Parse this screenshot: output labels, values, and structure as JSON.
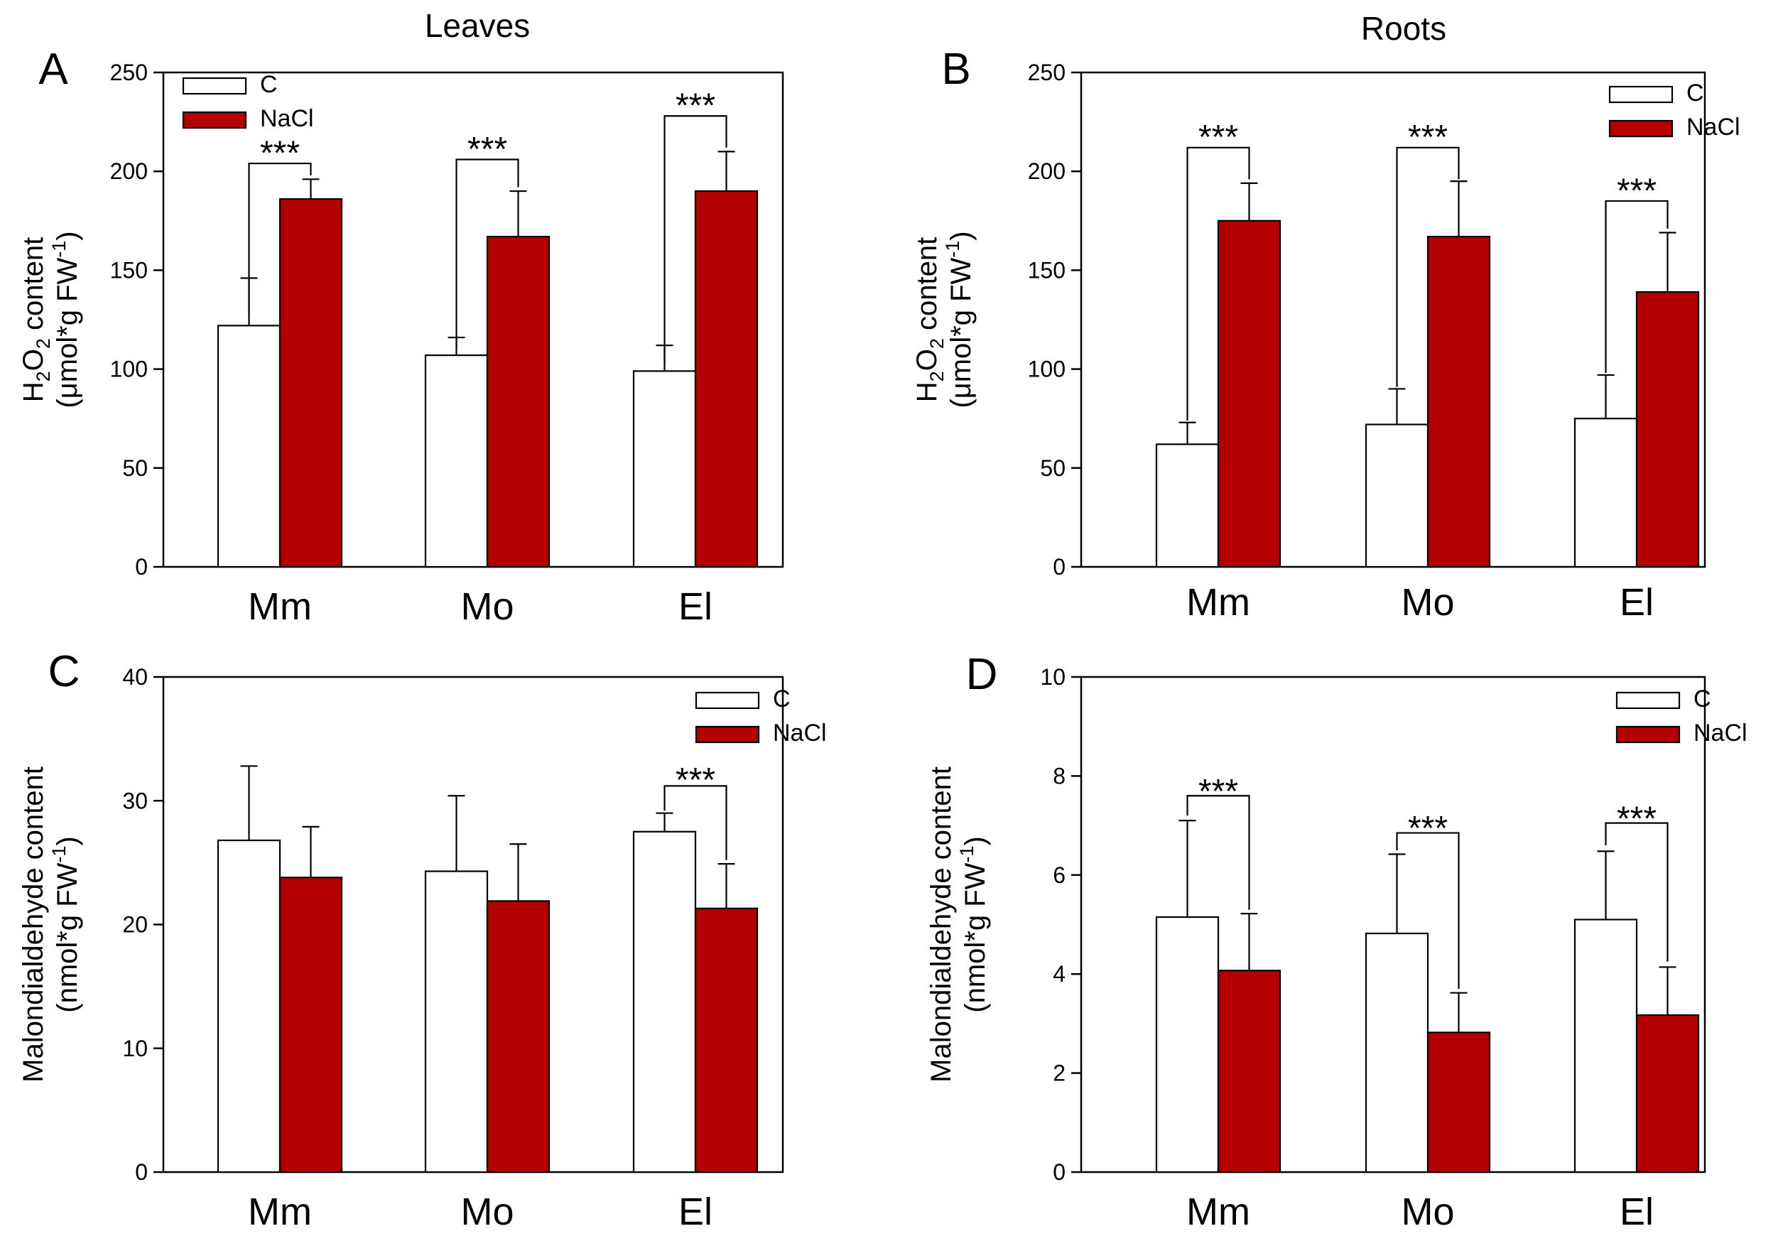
{
  "colors": {
    "control": "#ffffff",
    "nacl": "#b40000",
    "outline": "#000000"
  },
  "section_titles": {
    "leaves": "Leaves",
    "roots": "Roots"
  },
  "chart_data": [
    {
      "type": "bar",
      "id": "A",
      "panel_label": "A",
      "categories": [
        "Mm",
        "Mo",
        "El"
      ],
      "series": [
        {
          "name": "C",
          "values": [
            122,
            107,
            99
          ],
          "errors": [
            24,
            9,
            13
          ]
        },
        {
          "name": "NaCl",
          "values": [
            186,
            167,
            190
          ],
          "errors": [
            10,
            23,
            20
          ]
        }
      ],
      "ylim": [
        0,
        250
      ],
      "yticks": [
        0,
        50,
        100,
        150,
        200,
        250
      ],
      "ylabel": {
        "line1_pre": "H",
        "sub1": "2",
        "mid": "O",
        "sub2": "2",
        "line1_post": " content",
        "line2_pre": "(μmol*g FW",
        "sup": "-1",
        "line2_post": ")"
      },
      "legend": {
        "position": "top-left",
        "entries": [
          "C",
          "NaCl"
        ]
      },
      "significance": [
        {
          "category": "Mm",
          "label": "***",
          "from": "C",
          "to": "NaCl",
          "left_y": 128,
          "right_y": 198,
          "top_y": 204,
          "text_y": 210
        },
        {
          "category": "Mo",
          "label": "***",
          "from": "C",
          "to": "NaCl",
          "left_y": 111,
          "right_y": 192,
          "top_y": 206,
          "text_y": 212
        },
        {
          "category": "El",
          "label": "***",
          "from": "C",
          "to": "NaCl",
          "left_y": 102,
          "right_y": 212,
          "top_y": 228,
          "text_y": 234
        }
      ]
    },
    {
      "type": "bar",
      "id": "B",
      "panel_label": "B",
      "categories": [
        "Mm",
        "Mo",
        "El"
      ],
      "series": [
        {
          "name": "C",
          "values": [
            62,
            72,
            75
          ],
          "errors": [
            11,
            18,
            22
          ]
        },
        {
          "name": "NaCl",
          "values": [
            175,
            167,
            139
          ],
          "errors": [
            19,
            28,
            30
          ]
        }
      ],
      "ylim": [
        0,
        250
      ],
      "yticks": [
        0,
        50,
        100,
        150,
        200,
        250
      ],
      "ylabel": {
        "line1_pre": "H",
        "sub1": "2",
        "mid": "O",
        "sub2": "2",
        "line1_post": " content",
        "line2_pre": "(μmol*g FW",
        "sup": "-1",
        "line2_post": ")"
      },
      "legend": {
        "position": "top-right",
        "entries": [
          "C",
          "NaCl"
        ]
      },
      "significance": [
        {
          "category": "Mm",
          "label": "***",
          "from": "C",
          "to": "NaCl",
          "left_y": 74,
          "right_y": 196,
          "top_y": 212,
          "text_y": 218
        },
        {
          "category": "Mo",
          "label": "***",
          "from": "C",
          "to": "NaCl",
          "left_y": 91,
          "right_y": 196,
          "top_y": 212,
          "text_y": 218
        },
        {
          "category": "El",
          "label": "***",
          "from": "C",
          "to": "NaCl",
          "left_y": 98,
          "right_y": 171,
          "top_y": 185,
          "text_y": 191
        }
      ]
    },
    {
      "type": "bar",
      "id": "C",
      "panel_label": "C",
      "categories": [
        "Mm",
        "Mo",
        "El"
      ],
      "series": [
        {
          "name": "C",
          "values": [
            26.8,
            24.3,
            27.5
          ],
          "errors": [
            6.0,
            6.1,
            1.5
          ]
        },
        {
          "name": "NaCl",
          "values": [
            23.8,
            21.9,
            21.3
          ],
          "errors": [
            4.1,
            4.6,
            3.6
          ]
        }
      ],
      "ylim": [
        0,
        40
      ],
      "yticks": [
        0,
        10,
        20,
        30,
        40
      ],
      "ylabel": {
        "line1_pre": "Malondialdehyde content",
        "line2_pre": "(nmol*g FW",
        "sup": "-1",
        "line2_post": ")"
      },
      "legend": {
        "position": "top-right",
        "entries": [
          "C",
          "NaCl"
        ]
      },
      "significance": [
        {
          "category": "El",
          "label": "***",
          "from": "C",
          "to": "NaCl",
          "left_y": 29.2,
          "right_y": 25.2,
          "top_y": 31.2,
          "text_y": 31.8
        }
      ]
    },
    {
      "type": "bar",
      "id": "D",
      "panel_label": "D",
      "categories": [
        "Mm",
        "Mo",
        "El"
      ],
      "series": [
        {
          "name": "C",
          "values": [
            5.15,
            4.82,
            5.1
          ],
          "errors": [
            1.95,
            1.6,
            1.38
          ]
        },
        {
          "name": "NaCl",
          "values": [
            4.07,
            2.82,
            3.17
          ],
          "errors": [
            1.15,
            0.8,
            0.97
          ]
        }
      ],
      "ylim": [
        0,
        10
      ],
      "yticks": [
        0,
        2,
        4,
        6,
        8,
        10
      ],
      "ylabel": {
        "line1_pre": "Malondialdehyde content",
        "line2_pre": "(nmol*g FW",
        "sup": "-1",
        "line2_post": ")"
      },
      "legend": {
        "position": "top-right",
        "entries": [
          "C",
          "NaCl"
        ]
      },
      "significance": [
        {
          "category": "Mm",
          "label": "***",
          "from": "C",
          "to": "NaCl",
          "left_y": 7.2,
          "right_y": 5.3,
          "top_y": 7.6,
          "text_y": 7.72
        },
        {
          "category": "Mo",
          "label": "***",
          "from": "C",
          "to": "NaCl",
          "left_y": 6.5,
          "right_y": 3.7,
          "top_y": 6.85,
          "text_y": 6.97
        },
        {
          "category": "El",
          "label": "***",
          "from": "C",
          "to": "NaCl",
          "left_y": 6.6,
          "right_y": 4.25,
          "top_y": 7.05,
          "text_y": 7.17
        }
      ]
    }
  ]
}
